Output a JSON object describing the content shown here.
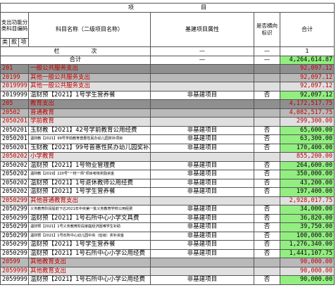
{
  "header": {
    "project_word": "项",
    "project_word2": "目",
    "code_header": "支出功能分类科目编码",
    "name_header": "科目名称（二级项目名称）",
    "attr_header": "基建项目属性",
    "flag_header": "是否横向标识",
    "total_header": "合计",
    "sub_lei": "类",
    "sub_kuan": "款",
    "sub_xiang": "项",
    "lanci1": "栏",
    "lanci2": "次",
    "lanci_dash1": "—",
    "lanci_dash2": "—",
    "lanci_num": "1"
  },
  "rows": [
    {
      "level": "total",
      "code": "",
      "name": "合计",
      "attr": "—",
      "flag": "—",
      "amount": "4,264,614.87"
    },
    {
      "level": "l1",
      "code": "201",
      "name": "一般公共服务支出",
      "attr": "",
      "flag": "",
      "amount": "92,097.12"
    },
    {
      "level": "l2",
      "code": "20199",
      "name": "其他一般公共服务支出",
      "attr": "",
      "flag": "",
      "amount": "92,097.12"
    },
    {
      "level": "l3",
      "code": "2019999",
      "name": "其他一般公共服务支出",
      "attr": "",
      "flag": "",
      "amount": "92,097.12"
    },
    {
      "level": "leaf",
      "code": "2019999",
      "name": "温财预【2021】1号学生营养餐",
      "attr": "非基建项目",
      "flag": "否",
      "amount": "92,097.12"
    },
    {
      "level": "l1",
      "code": "205",
      "name": "教育支出",
      "attr": "",
      "flag": "",
      "amount": "4,172,517.75"
    },
    {
      "level": "l2",
      "code": "20502",
      "name": "普通教育",
      "attr": "",
      "flag": "",
      "amount": "4,082,517.75"
    },
    {
      "level": "l3",
      "code": "2050201",
      "name": "学前教育",
      "attr": "",
      "flag": "",
      "amount": "299,300.00"
    },
    {
      "level": "leaf",
      "code": "2050201",
      "name": "玉财教【2021】42号学前教育公用经费",
      "attr": "非基建项目",
      "flag": "否",
      "amount": "65,600.00"
    },
    {
      "level": "leaf tiny",
      "code": "2050201",
      "name": "温财教【2021】99号学前教育普惠性民办幼儿园奖补项目",
      "attr": "非基建项目",
      "flag": "否",
      "amount": "63,300.00"
    },
    {
      "level": "leaf",
      "code": "2050201",
      "name": "玉财教【2021】99号普惠性民办幼儿园奖补项目",
      "attr": "非基建项目",
      "flag": "否",
      "amount": "170,400.00"
    },
    {
      "level": "l3",
      "code": "2050202",
      "name": "小学教育",
      "attr": "",
      "flag": "",
      "amount": "855,200.00"
    },
    {
      "level": "leaf",
      "code": "2050202",
      "name": "温财预【2021】1号物业管理费",
      "attr": "非基建项目",
      "flag": "否",
      "amount": "264,600.00"
    },
    {
      "level": "leaf tiny",
      "code": "2050202",
      "name": "温财教【2019】220号“一校一师”项目考核奖励资金",
      "attr": "非基建项目",
      "flag": "否",
      "amount": "350,000.00"
    },
    {
      "level": "leaf",
      "code": "2050202",
      "name": "温财预【2021】1号退休教师公用经费",
      "attr": "非基建项目",
      "flag": "否",
      "amount": "43,200.00"
    },
    {
      "level": "leaf",
      "code": "2050202",
      "name": "温财预【2021】1号学生营养餐",
      "attr": "非基建项目",
      "flag": "否",
      "amount": "197,400.00"
    },
    {
      "level": "l3",
      "code": "2050299",
      "name": "其他普通教育支出",
      "attr": "",
      "flag": "",
      "amount": "2,928,017.75"
    },
    {
      "level": "leaf tiny",
      "code": "2050299",
      "name": "义务教育阶段提前下达2021年中央第一批义务教育学校公用经费",
      "attr": "非基建项目",
      "flag": "否",
      "amount": "34,000.00"
    },
    {
      "level": "leaf",
      "code": "2050299",
      "name": "温财预【2021】1号石所中心小学文具费",
      "attr": "非基建项目",
      "flag": "否",
      "amount": "36,820.00"
    },
    {
      "level": "leaf tiny",
      "code": "2050299",
      "name": "温财预【2021】1号义务教育阶段家庭经济困难学生补助",
      "attr": "非基建项目",
      "flag": "否",
      "amount": "39,750.00"
    },
    {
      "level": "leaf tiny",
      "code": "2050299",
      "name": "温财预【2021】1号石所中心幼儿园中央（省级）奖补资金",
      "attr": "非基建项目",
      "flag": "否",
      "amount": "100,000.00"
    },
    {
      "level": "leaf",
      "code": "2050299",
      "name": "温财预【2021】1号学生营养餐",
      "attr": "非基建项目",
      "flag": "否",
      "amount": "1,276,340.00"
    },
    {
      "level": "leaf",
      "code": "2050299",
      "name": "温财预【2021】1号石所中心小学公用经费",
      "attr": "非基建项目",
      "flag": "否",
      "amount": "1,441,107.75"
    },
    {
      "level": "l2",
      "code": "20599",
      "name": "其他教育支出",
      "attr": "",
      "flag": "",
      "amount": "90,000.00"
    },
    {
      "level": "l3",
      "code": "2059999",
      "name": "其他教育支出",
      "attr": "",
      "flag": "",
      "amount": "90,000.00"
    },
    {
      "level": "leaf",
      "code": "2059999",
      "name": "温财预【2021】1号石所中心小学公用经费",
      "attr": "非基建项目",
      "flag": "否",
      "amount": "90,000.00"
    }
  ]
}
